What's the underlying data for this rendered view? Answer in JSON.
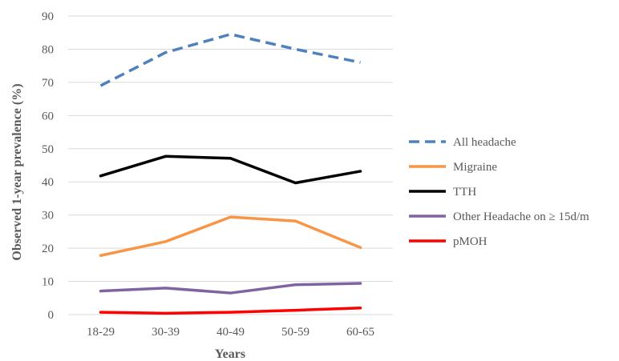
{
  "chart_data": {
    "type": "line",
    "title": "",
    "xlabel": "Years",
    "ylabel": "Observed 1-year prevalence (%)",
    "categories": [
      "18-29",
      "30-39",
      "40-49",
      "50-59",
      "60-65"
    ],
    "ylim": [
      0,
      90
    ],
    "yticks": [
      0,
      10,
      20,
      30,
      40,
      50,
      60,
      70,
      80,
      90
    ],
    "grid": true,
    "legend_position": "right",
    "series": [
      {
        "name": "All headache",
        "values": [
          69,
          79,
          84.5,
          80,
          76
        ],
        "color": "#4f81bd",
        "dashed": true
      },
      {
        "name": "Migraine",
        "values": [
          17.8,
          22,
          29.4,
          28.2,
          20.2
        ],
        "color": "#f79646",
        "dashed": false
      },
      {
        "name": "TTH",
        "values": [
          41.8,
          47.7,
          47.1,
          39.7,
          43.2
        ],
        "color": "#000000",
        "dashed": false
      },
      {
        "name": "Other Headache on ≥ 15d/m",
        "values": [
          7.1,
          8,
          6.5,
          9,
          9.4
        ],
        "color": "#8064a2",
        "dashed": false
      },
      {
        "name": "pMOH",
        "values": [
          0.7,
          0.4,
          0.7,
          1.3,
          2
        ],
        "color": "#ff0000",
        "dashed": false
      }
    ]
  }
}
